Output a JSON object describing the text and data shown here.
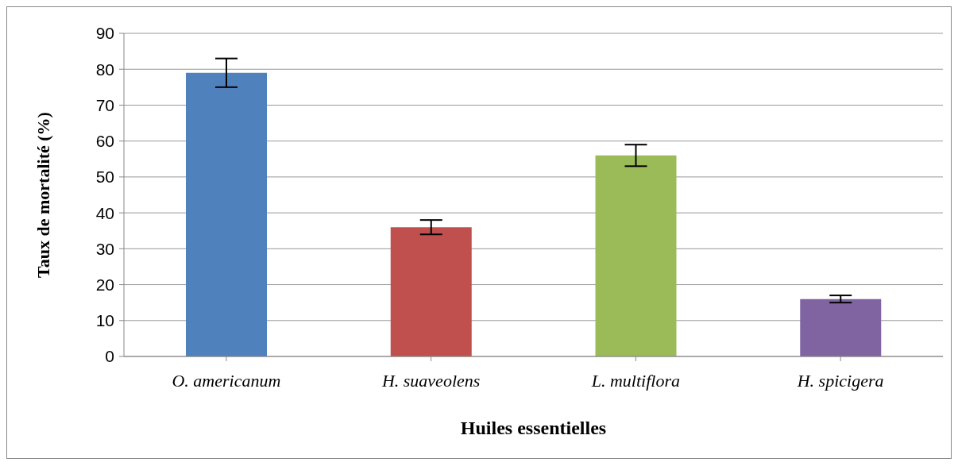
{
  "chart_data": {
    "type": "bar",
    "xlabel": "Huiles essentielles",
    "ylabel": "Taux de mortalité (%)",
    "categories": [
      "O. americanum",
      "H. suaveolens",
      "L. multiflora",
      "H. spicigera"
    ],
    "values": [
      79,
      36,
      56,
      16
    ],
    "errors": [
      4,
      2,
      3,
      1
    ],
    "colors": [
      "#4f81bd",
      "#c0504d",
      "#9bbb59",
      "#8064a2"
    ],
    "ylim": [
      0,
      90
    ],
    "yticks": [
      0,
      10,
      20,
      30,
      40,
      50,
      60,
      70,
      80,
      90
    ],
    "grid": "y"
  }
}
